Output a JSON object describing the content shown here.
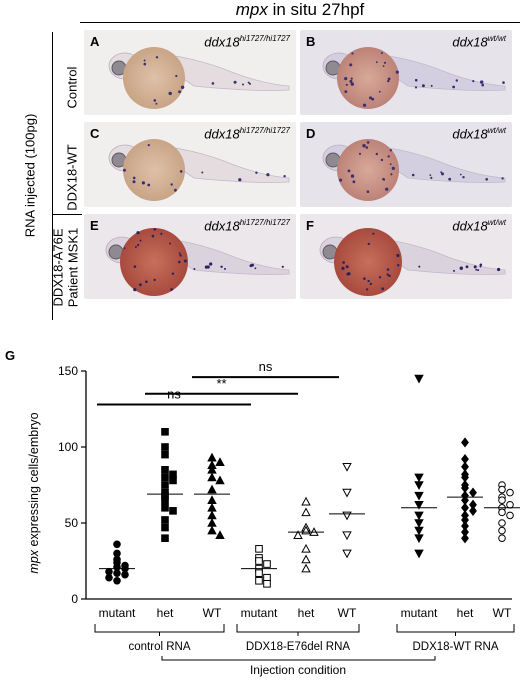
{
  "figure": {
    "title_italic": "mpx",
    "title_rest": " in situ 27hpf",
    "rna_label": "RNA injected (100pg)",
    "rows": [
      {
        "label_lines": [
          "Control"
        ]
      },
      {
        "label_lines": [
          "DDX18-WT"
        ]
      },
      {
        "label_lines": [
          "DDX18-A76E",
          "Patient MSK1"
        ]
      }
    ],
    "panels": [
      {
        "letter": "A",
        "genotype_base": "ddx18",
        "genotype_sup": "hi1727/hi1727",
        "style": "mutant",
        "row": 0,
        "col": 0
      },
      {
        "letter": "B",
        "genotype_base": "ddx18",
        "genotype_sup": "wt/wt",
        "style": "wt",
        "row": 0,
        "col": 1
      },
      {
        "letter": "C",
        "genotype_base": "ddx18",
        "genotype_sup": "hi1727/hi1727",
        "style": "mutant",
        "row": 1,
        "col": 0
      },
      {
        "letter": "D",
        "genotype_base": "ddx18",
        "genotype_sup": "wt/wt",
        "style": "wt",
        "row": 1,
        "col": 1
      },
      {
        "letter": "E",
        "genotype_base": "ddx18",
        "genotype_sup": "hi1727/hi1727",
        "style": "dark",
        "row": 2,
        "col": 0
      },
      {
        "letter": "F",
        "genotype_base": "ddx18",
        "genotype_sup": "wt/wt",
        "style": "dark",
        "row": 2,
        "col": 1
      }
    ],
    "panel_g_letter": "G"
  },
  "chart_data": {
    "type": "scatter",
    "ylabel_italic": "mpx",
    "ylabel_rest": " expressing cells/embryo",
    "xlabel": "Injection condition",
    "ylim": [
      0,
      150
    ],
    "yticks": [
      0,
      50,
      100,
      150
    ],
    "groups": [
      {
        "name": "control RNA",
        "categories": [
          "mutant",
          "het",
          "WT"
        ]
      },
      {
        "name": "DDX18-E76del RNA",
        "categories": [
          "mutant",
          "het",
          "WT"
        ]
      },
      {
        "name": "DDX18-WT RNA",
        "categories": [
          "mutant",
          "het",
          "WT"
        ]
      }
    ],
    "series": [
      {
        "group": 0,
        "category": "mutant",
        "marker": "filled-circle",
        "mean": 20,
        "values": [
          36,
          30,
          26,
          24,
          22,
          21,
          20,
          18,
          17,
          16,
          14,
          12
        ]
      },
      {
        "group": 0,
        "category": "het",
        "marker": "filled-square",
        "mean": 69,
        "values": [
          110,
          100,
          95,
          85,
          82,
          80,
          78,
          75,
          70,
          68,
          65,
          60,
          58,
          52,
          47,
          40
        ]
      },
      {
        "group": 0,
        "category": "WT",
        "marker": "filled-triangle-up",
        "mean": 69,
        "values": [
          93,
          90,
          88,
          85,
          80,
          78,
          72,
          65,
          60,
          55,
          50,
          45,
          42
        ]
      },
      {
        "group": 1,
        "category": "mutant",
        "marker": "open-square",
        "mean": 20,
        "values": [
          33,
          27,
          25,
          23,
          20,
          17,
          14,
          12,
          10
        ]
      },
      {
        "group": 1,
        "category": "het",
        "marker": "open-triangle-up",
        "mean": 44,
        "values": [
          64,
          57,
          47,
          45,
          44,
          42,
          33,
          26,
          20
        ]
      },
      {
        "group": 1,
        "category": "WT",
        "marker": "open-triangle-down",
        "mean": 56,
        "values": [
          87,
          70,
          55,
          42,
          30
        ]
      },
      {
        "group": 2,
        "category": "mutant",
        "marker": "filled-triangle-down",
        "mean": 60,
        "values": [
          145,
          80,
          75,
          68,
          62,
          55,
          50,
          45,
          40,
          30
        ]
      },
      {
        "group": 2,
        "category": "het",
        "marker": "filled-diamond",
        "mean": 67,
        "values": [
          103,
          92,
          87,
          82,
          80,
          75,
          73,
          70,
          68,
          65,
          62,
          60,
          58,
          55,
          52,
          48,
          44,
          40
        ]
      },
      {
        "group": 2,
        "category": "WT",
        "marker": "open-circle",
        "mean": 60,
        "values": [
          75,
          72,
          70,
          67,
          65,
          62,
          60,
          57,
          55,
          50,
          45,
          40
        ]
      }
    ],
    "significance": [
      {
        "label": "ns",
        "from": [
          0,
          "mutant"
        ],
        "to": [
          1,
          "mutant"
        ],
        "y": 128
      },
      {
        "label": "**",
        "from": [
          0,
          "het"
        ],
        "to": [
          1,
          "het"
        ],
        "y": 135
      },
      {
        "label": "ns",
        "from": [
          0,
          "WT"
        ],
        "to": [
          1,
          "WT"
        ],
        "y": 146
      }
    ]
  }
}
